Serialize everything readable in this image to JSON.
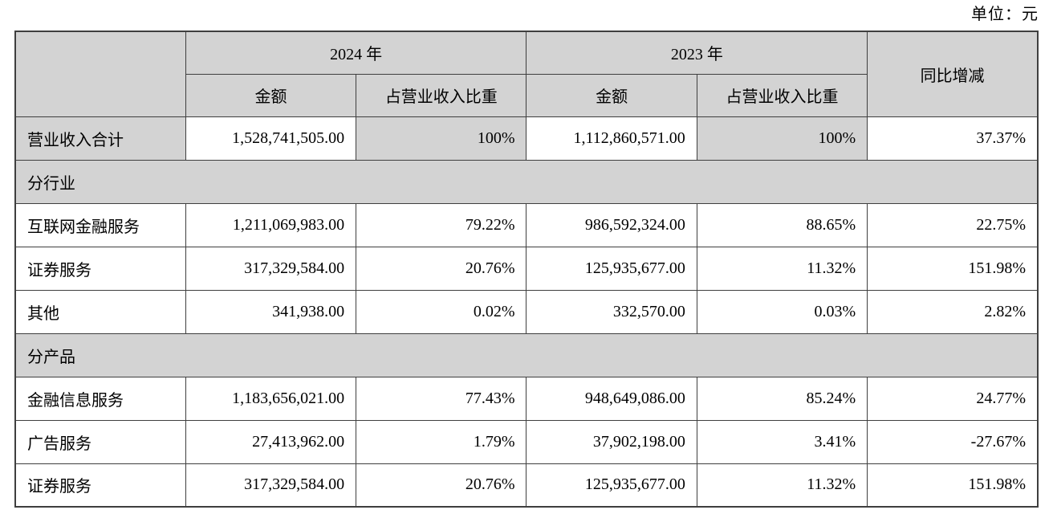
{
  "meta": {
    "unit_label": "单位：元"
  },
  "colors": {
    "header_bg": "#d3d3d3",
    "section_bg": "#d3d3d3",
    "row_bg": "#ffffff",
    "border": "#3f3f3f",
    "text": "#000000"
  },
  "table": {
    "header": {
      "corner": "",
      "year_2024": "2024 年",
      "year_2023": "2023 年",
      "amount_label_2024": "金额",
      "ratio_label_2024": "占营业收入比重",
      "amount_label_2023": "金额",
      "ratio_label_2023": "占营业收入比重",
      "yoy_label": "同比增减"
    },
    "rows": [
      {
        "type": "total",
        "label": "营业收入合计",
        "amount_2024": "1,528,741,505.00",
        "ratio_2024": "100%",
        "amount_2023": "1,112,860,571.00",
        "ratio_2023": "100%",
        "yoy": "37.37%"
      },
      {
        "type": "section",
        "label": "分行业"
      },
      {
        "type": "data",
        "label": "互联网金融服务",
        "amount_2024": "1,211,069,983.00",
        "ratio_2024": "79.22%",
        "amount_2023": "986,592,324.00",
        "ratio_2023": "88.65%",
        "yoy": "22.75%"
      },
      {
        "type": "data",
        "label": "证券服务",
        "amount_2024": "317,329,584.00",
        "ratio_2024": "20.76%",
        "amount_2023": "125,935,677.00",
        "ratio_2023": "11.32%",
        "yoy": "151.98%"
      },
      {
        "type": "data",
        "label": "其他",
        "amount_2024": "341,938.00",
        "ratio_2024": "0.02%",
        "amount_2023": "332,570.00",
        "ratio_2023": "0.03%",
        "yoy": "2.82%"
      },
      {
        "type": "section",
        "label": "分产品"
      },
      {
        "type": "data",
        "label": "金融信息服务",
        "amount_2024": "1,183,656,021.00",
        "ratio_2024": "77.43%",
        "amount_2023": "948,649,086.00",
        "ratio_2023": "85.24%",
        "yoy": "24.77%"
      },
      {
        "type": "data",
        "label": "广告服务",
        "amount_2024": "27,413,962.00",
        "ratio_2024": "1.79%",
        "amount_2023": "37,902,198.00",
        "ratio_2023": "3.41%",
        "yoy": "-27.67%"
      },
      {
        "type": "data",
        "label": "证券服务",
        "amount_2024": "317,329,584.00",
        "ratio_2024": "20.76%",
        "amount_2023": "125,935,677.00",
        "ratio_2023": "11.32%",
        "yoy": "151.98%"
      }
    ]
  }
}
